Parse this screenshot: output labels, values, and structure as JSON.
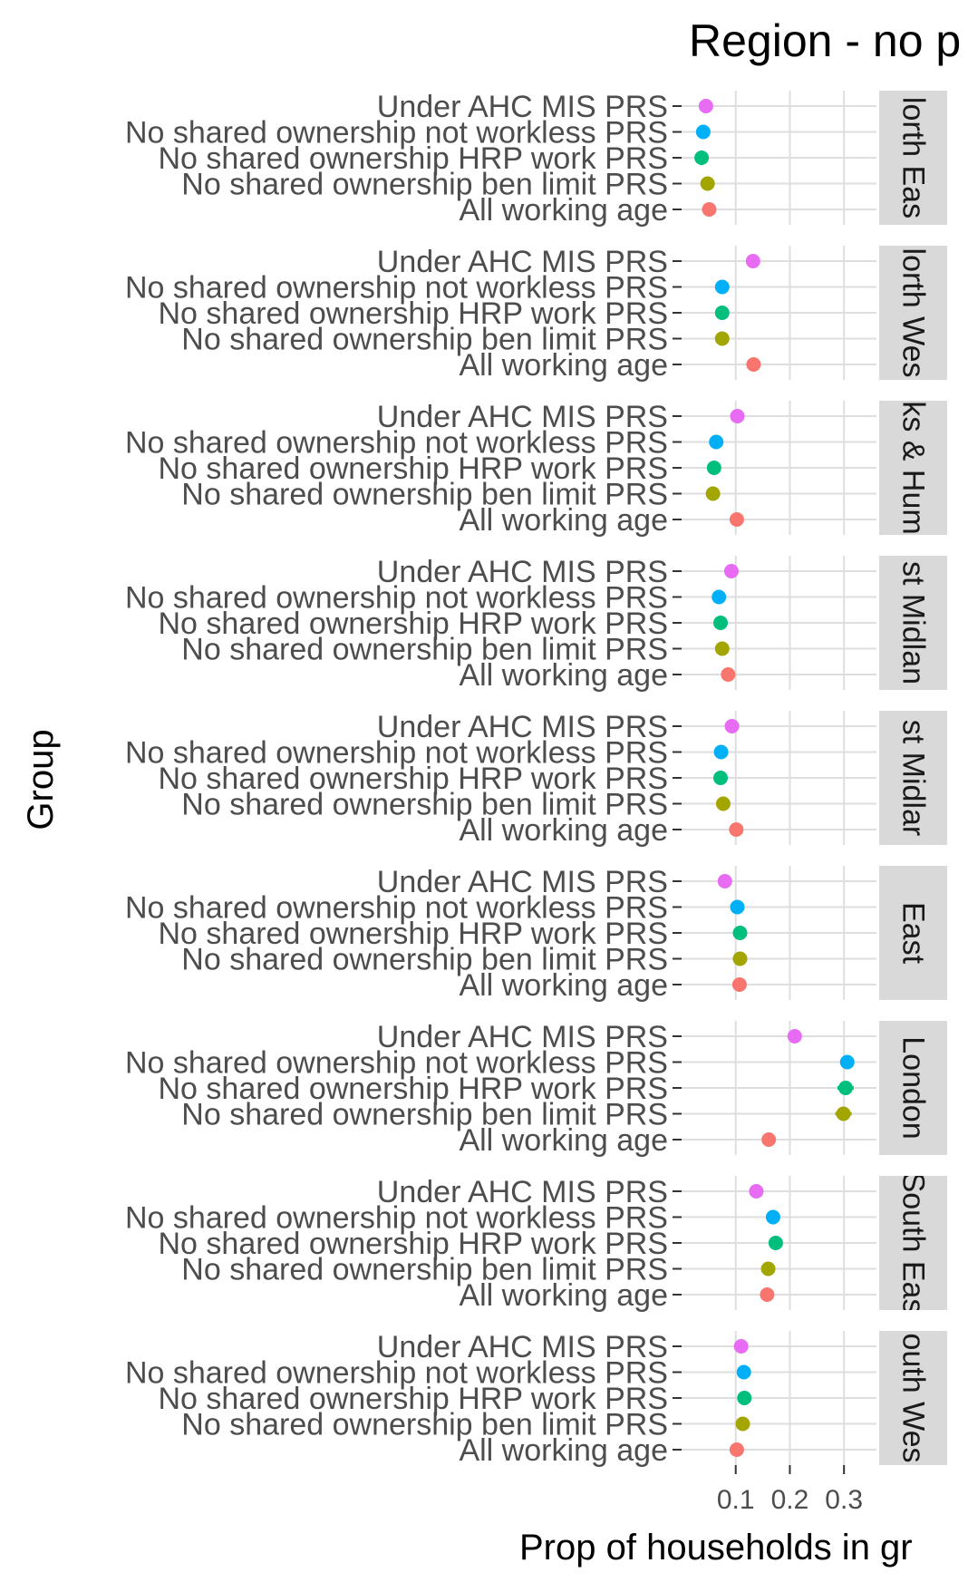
{
  "chart_data": {
    "type": "scatter",
    "title": "Region - no p",
    "xlabel": "Prop of households in gr",
    "ylabel": "Group",
    "xlim": [
      0.0,
      0.36
    ],
    "x_ticks": [
      {
        "value": 0.1,
        "label": "0.1"
      },
      {
        "value": 0.2,
        "label": "0.2"
      },
      {
        "value": 0.3,
        "label": "0.3"
      }
    ],
    "grid": true,
    "legend": "none",
    "categories": [
      "Under AHC MIS PRS",
      "No shared ownership not workless PRS",
      "No shared ownership HRP work PRS",
      "No shared ownership ben limit PRS",
      "All working age"
    ],
    "category_colors": [
      "#e76bf3",
      "#00b0f6",
      "#00bf7d",
      "#a3a500",
      "#f8766d"
    ],
    "panels": [
      {
        "label": "North East",
        "strip_text": "lorth Eas",
        "values": [
          0.045,
          0.04,
          0.037,
          0.048,
          0.051
        ]
      },
      {
        "label": "North West",
        "strip_text": "lorth Wes",
        "values": [
          0.132,
          0.075,
          0.075,
          0.075,
          0.133
        ]
      },
      {
        "label": "Yorks & Humber",
        "strip_text": "ks & Hum",
        "values": [
          0.103,
          0.064,
          0.06,
          0.058,
          0.102
        ]
      },
      {
        "label": "East Midlands",
        "strip_text": "st Midlan",
        "values": [
          0.092,
          0.069,
          0.072,
          0.075,
          0.086
        ]
      },
      {
        "label": "West Midlands",
        "strip_text": "st Midlar",
        "values": [
          0.093,
          0.073,
          0.072,
          0.077,
          0.101
        ]
      },
      {
        "label": "East",
        "strip_text": "East",
        "values": [
          0.08,
          0.103,
          0.108,
          0.108,
          0.107
        ]
      },
      {
        "label": "London",
        "strip_text": "London",
        "values": [
          0.209,
          0.306,
          0.303,
          0.299,
          0.161
        ],
        "errors": [
          0,
          0.013,
          0.015,
          0.015,
          0
        ]
      },
      {
        "label": "South East",
        "strip_text": "South Eas",
        "values": [
          0.138,
          0.169,
          0.174,
          0.16,
          0.158
        ]
      },
      {
        "label": "South West",
        "strip_text": "outh Wes",
        "values": [
          0.11,
          0.115,
          0.116,
          0.113,
          0.102
        ]
      }
    ]
  }
}
